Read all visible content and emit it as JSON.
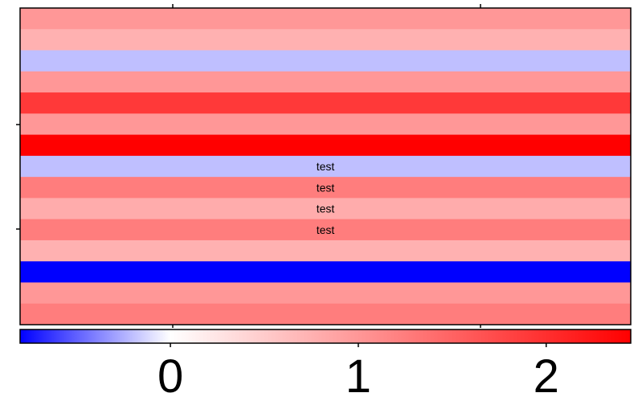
{
  "chart_data": {
    "type": "heatmap",
    "rows": 15,
    "columns": 1,
    "values": [
      1.0,
      0.75,
      -0.2,
      1.0,
      1.9,
      1.0,
      2.45,
      -0.2,
      1.25,
      0.8,
      1.25,
      0.75,
      -0.8,
      1.0,
      1.25
    ],
    "cell_labels": [
      "",
      "",
      "",
      "",
      "",
      "",
      "",
      "test",
      "test",
      "test",
      "test",
      "",
      "",
      "",
      ""
    ],
    "colorscale": {
      "min": -0.8,
      "max": 2.45,
      "mid": 0.0,
      "low_color": "#0000ff",
      "mid_color": "#ffffff",
      "high_color": "#ff0000"
    },
    "colorbar": {
      "orientation": "horizontal",
      "position": "bottom",
      "ticks": [
        0,
        1,
        2
      ],
      "tick_labels": [
        "0",
        "1",
        "2"
      ]
    },
    "axes": {
      "show_tick_labels": false,
      "grid": false
    }
  }
}
